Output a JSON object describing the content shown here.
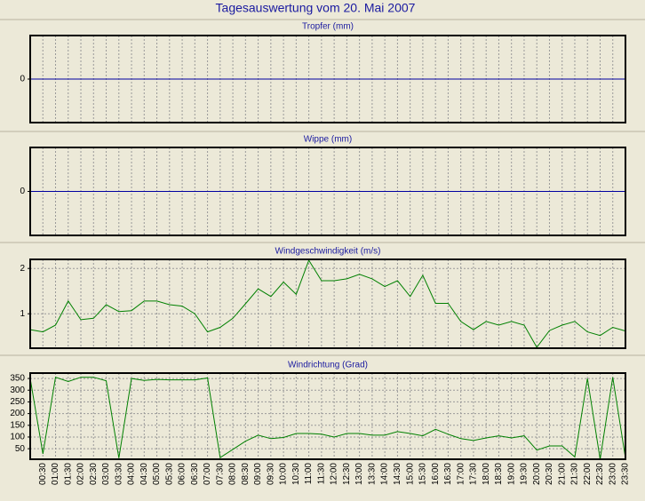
{
  "title": "Tagesauswertung vom 20. Mai 2007",
  "chart_data": [
    {
      "type": "line",
      "title": "Tropfer (mm)",
      "ylim": [
        -1,
        1
      ],
      "yticks": [
        0
      ],
      "zero_line_color": "#0000a0",
      "grid": true
    },
    {
      "type": "line",
      "title": "Wippe (mm)",
      "ylim": [
        -1,
        1
      ],
      "yticks": [
        0
      ],
      "zero_line_color": "#0000a0",
      "grid": true
    },
    {
      "type": "line",
      "title": "Windgeschwindigkeit (m/s)",
      "ylim": [
        0.24,
        2.2
      ],
      "yticks": [
        1,
        2
      ],
      "grid": true,
      "color": "#008000",
      "values": [
        0.65,
        0.6,
        0.75,
        1.28,
        0.87,
        0.9,
        1.2,
        1.05,
        1.07,
        1.28,
        1.28,
        1.2,
        1.17,
        1.0,
        0.6,
        0.7,
        0.9,
        1.22,
        1.55,
        1.38,
        1.7,
        1.43,
        2.18,
        1.73,
        1.73,
        1.77,
        1.87,
        1.77,
        1.6,
        1.73,
        1.38,
        1.85,
        1.23,
        1.23,
        0.83,
        0.65,
        0.83,
        0.75,
        0.83,
        0.75,
        0.26,
        0.63,
        0.75,
        0.83,
        0.6,
        0.52,
        0.7,
        0.62
      ]
    },
    {
      "type": "line",
      "title": "Windrichtung (Grad)",
      "ylim": [
        5,
        373
      ],
      "yticks": [
        50,
        100,
        150,
        200,
        250,
        300,
        350
      ],
      "grid": true,
      "color": "#008000",
      "categories": [
        null,
        "00:30",
        "01:00",
        "01:30",
        "02:00",
        "02:30",
        "03:00",
        "03:30",
        "04:00",
        "04:30",
        "05:00",
        "05:30",
        "06:00",
        "06:30",
        "07:00",
        "07:30",
        "08:00",
        "08:30",
        "09:00",
        "09:30",
        "10:00",
        "10:30",
        "11:00",
        "11:30",
        "12:00",
        "12:30",
        "13:00",
        "13:30",
        "14:00",
        "14:30",
        "15:00",
        "15:30",
        "16:00",
        "16:30",
        "17:00",
        "17:30",
        "18:00",
        "18:30",
        "19:00",
        "19:30",
        "20:00",
        "20:30",
        "21:00",
        "21:30",
        "22:00",
        "22:30",
        "23:00",
        "23:30"
      ],
      "values": [
        350,
        28,
        355,
        337,
        355,
        355,
        340,
        10,
        350,
        342,
        346,
        344,
        344,
        344,
        352,
        12,
        47,
        82,
        108,
        93,
        98,
        115,
        115,
        112,
        100,
        115,
        115,
        108,
        108,
        123,
        115,
        105,
        133,
        112,
        93,
        85,
        96,
        105,
        96,
        105,
        44,
        62,
        62,
        15,
        350,
        5,
        355,
        10
      ]
    }
  ]
}
